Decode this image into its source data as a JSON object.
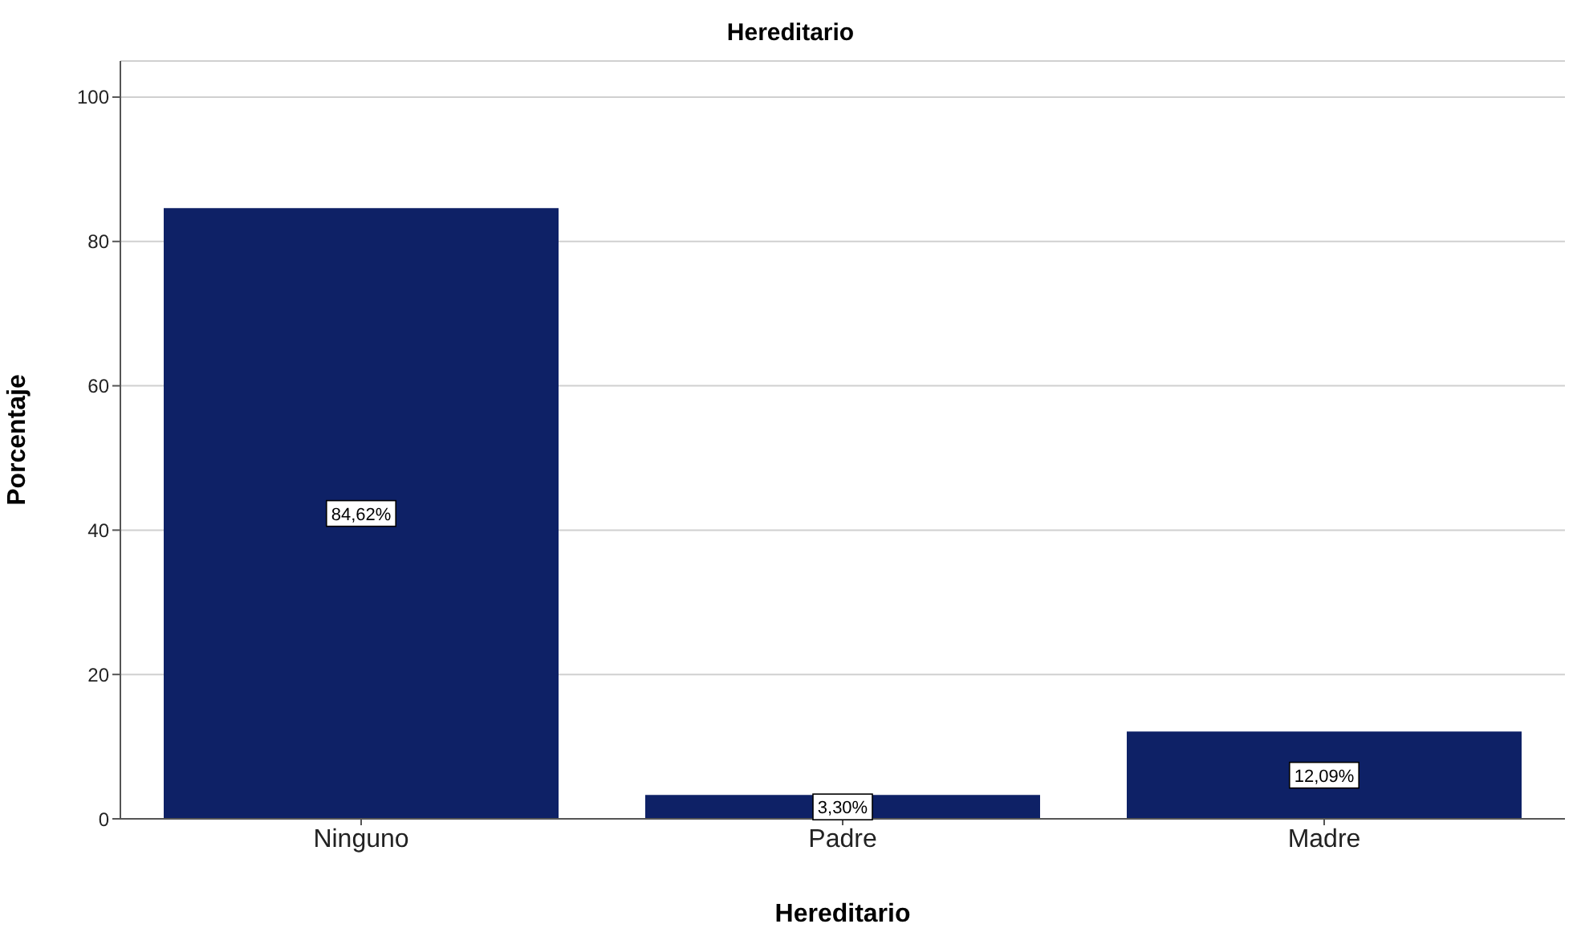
{
  "chart_data": {
    "type": "bar",
    "title": "Hereditario",
    "xlabel": "Hereditario",
    "ylabel": "Porcentaje",
    "categories": [
      "Ninguno",
      "Padre",
      "Madre"
    ],
    "values": [
      84.62,
      3.3,
      12.09
    ],
    "value_labels": [
      "84,62%",
      "3,30%",
      "12,09%"
    ],
    "color": "#0e2166",
    "ylim": [
      0,
      105
    ],
    "yticks": [
      0,
      20,
      40,
      60,
      80,
      100
    ],
    "grid": "y"
  }
}
